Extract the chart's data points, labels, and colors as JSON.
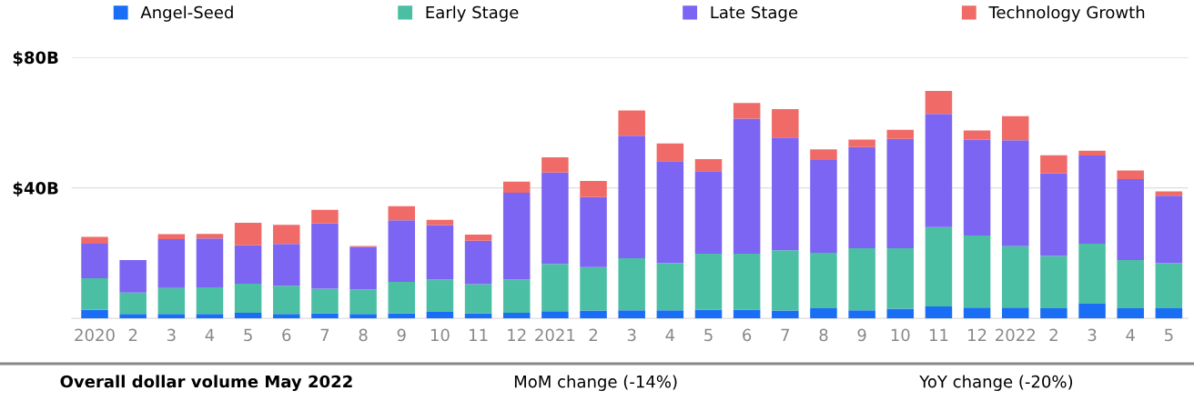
{
  "chart_data": {
    "type": "bar",
    "stacked": true,
    "categories": [
      "2020",
      "2",
      "3",
      "4",
      "5",
      "6",
      "7",
      "8",
      "9",
      "10",
      "11",
      "12",
      "2021",
      "2",
      "3",
      "4",
      "5",
      "6",
      "7",
      "8",
      "9",
      "10",
      "11",
      "12",
      "2022",
      "2",
      "3",
      "4",
      "5"
    ],
    "series": [
      {
        "name": "Angel-Seed",
        "color": "#1a6ef5",
        "values": [
          2.6,
          1.4,
          1.4,
          1.4,
          1.7,
          1.4,
          1.6,
          1.4,
          1.6,
          2.0,
          1.6,
          1.7,
          2.2,
          2.4,
          2.5,
          2.5,
          2.7,
          2.7,
          2.4,
          3.1,
          2.5,
          3.0,
          3.7,
          3.3,
          3.3,
          3.1,
          4.5,
          3.1,
          3.1
        ]
      },
      {
        "name": "Early Stage",
        "color": "#4bbfa3",
        "values": [
          9.7,
          6.5,
          7.9,
          8.1,
          8.9,
          8.6,
          7.5,
          7.4,
          9.6,
          9.9,
          8.9,
          10.2,
          14.5,
          13.3,
          15.9,
          14.5,
          17.1,
          17.1,
          18.5,
          17.0,
          19.0,
          18.5,
          24.3,
          22.1,
          18.8,
          16.0,
          18.4,
          14.8,
          13.8
        ]
      },
      {
        "name": "Late Stage",
        "color": "#7b65f2",
        "values": [
          10.6,
          10.0,
          15.0,
          15.0,
          11.8,
          12.8,
          20.0,
          13.1,
          18.9,
          16.7,
          13.3,
          26.6,
          28.0,
          21.5,
          37.6,
          31.2,
          25.3,
          41.4,
          34.5,
          28.4,
          31.0,
          33.5,
          34.7,
          29.3,
          32.5,
          25.3,
          27.0,
          24.8,
          20.7
        ]
      },
      {
        "name": "Technology Growth",
        "color": "#f06b67",
        "values": [
          2.1,
          0,
          1.5,
          1.4,
          6.9,
          5.9,
          4.2,
          0.3,
          4.3,
          1.6,
          1.9,
          3.4,
          4.7,
          4.9,
          7.7,
          5.4,
          3.7,
          4.8,
          8.7,
          3.3,
          2.3,
          2.8,
          7.0,
          2.9,
          7.4,
          5.6,
          1.5,
          2.6,
          1.3
        ]
      }
    ],
    "ylim": [
      0,
      80
    ],
    "yticks": [
      {
        "value": 40,
        "label": "$40B"
      },
      {
        "value": 80,
        "label": "$80B"
      }
    ],
    "grid": "y",
    "legend": "top",
    "annotations": [
      "Overall dollar volume May 2022",
      "MoM change (-14%)",
      "YoY change (-20%)"
    ]
  }
}
